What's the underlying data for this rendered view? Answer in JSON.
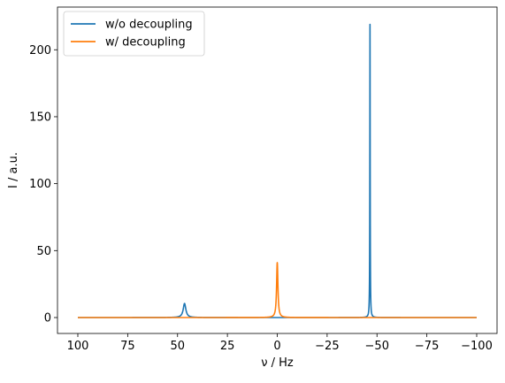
{
  "chart_data": {
    "type": "line",
    "xlabel": "ν / Hz",
    "ylabel": "I / a.u.",
    "xlim": [
      100,
      -100
    ],
    "ylim": [
      0,
      220
    ],
    "x_inverted": true,
    "x_ticks": [
      100,
      75,
      50,
      25,
      0,
      -25,
      -50,
      -75,
      -100
    ],
    "x_tick_labels": [
      "100",
      "75",
      "50",
      "25",
      "0",
      "−25",
      "−50",
      "−75",
      "−100"
    ],
    "y_ticks": [
      0,
      50,
      100,
      150,
      200
    ],
    "y_tick_labels": [
      "0",
      "50",
      "100",
      "150",
      "200"
    ],
    "grid": false,
    "legend_position": "upper-left",
    "x_range": [
      -100,
      100
    ],
    "series": [
      {
        "name": "w/o decoupling",
        "color": "#1f77b4",
        "peaks": [
          {
            "center": 46.5,
            "height": 10.5,
            "width": 0.8
          },
          {
            "center": -46.5,
            "height": 219,
            "width": 0.1
          }
        ]
      },
      {
        "name": "w/ decoupling",
        "color": "#ff7f0e",
        "peaks": [
          {
            "center": 0,
            "height": 41,
            "width": 0.4
          }
        ]
      }
    ]
  }
}
